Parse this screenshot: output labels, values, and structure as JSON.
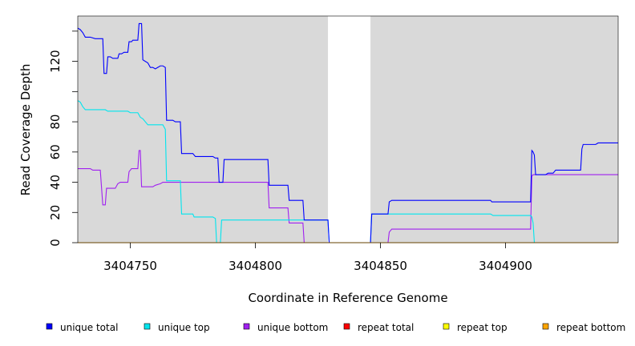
{
  "chart_data": {
    "type": "line",
    "title": "",
    "xlabel": "Coordinate in Reference Genome",
    "ylabel": "Read Coverage Depth",
    "xlim": [
      3404729,
      3404945
    ],
    "ylim": [
      0,
      150
    ],
    "x_ticks": [
      3404750,
      3404800,
      3404850,
      3404900
    ],
    "y_ticks": [
      0,
      20,
      40,
      60,
      80,
      120
    ],
    "y_minor_ticks": [
      100,
      140
    ],
    "background": "#d9d9d9",
    "gap_region": {
      "from": 3404829,
      "to": 3404846,
      "color": "#ffffff"
    },
    "grid": false,
    "legend_position": "bottom",
    "series": [
      {
        "name": "unique total",
        "color": "#0000ff",
        "points": [
          [
            3404729,
            142
          ],
          [
            3404730,
            141
          ],
          [
            3404731,
            139
          ],
          [
            3404732,
            136
          ],
          [
            3404734,
            136
          ],
          [
            3404736,
            135
          ],
          [
            3404739,
            135
          ],
          [
            3404739.5,
            112
          ],
          [
            3404740.5,
            112
          ],
          [
            3404741,
            123
          ],
          [
            3404742,
            123
          ],
          [
            3404743,
            122
          ],
          [
            3404745,
            122
          ],
          [
            3404745.5,
            125
          ],
          [
            3404746.5,
            125
          ],
          [
            3404747.5,
            126
          ],
          [
            3404749,
            126
          ],
          [
            3404749.5,
            133
          ],
          [
            3404750.5,
            133
          ],
          [
            3404751,
            134
          ],
          [
            3404753,
            134
          ],
          [
            3404753.5,
            145
          ],
          [
            3404754.5,
            145
          ],
          [
            3404755,
            121
          ],
          [
            3404756,
            120
          ],
          [
            3404757,
            119
          ],
          [
            3404758,
            116
          ],
          [
            3404759,
            116
          ],
          [
            3404760,
            115
          ],
          [
            3404761,
            116
          ],
          [
            3404762,
            117
          ],
          [
            3404763,
            117
          ],
          [
            3404764,
            116
          ],
          [
            3404764.5,
            81
          ],
          [
            3404767,
            81
          ],
          [
            3404768,
            80
          ],
          [
            3404770,
            80
          ],
          [
            3404770.5,
            59
          ],
          [
            3404775,
            59
          ],
          [
            3404776,
            57
          ],
          [
            3404783,
            57
          ],
          [
            3404784,
            56
          ],
          [
            3404785,
            56
          ],
          [
            3404785.5,
            40
          ],
          [
            3404787,
            40
          ],
          [
            3404787.5,
            55
          ],
          [
            3404805,
            55
          ],
          [
            3404805.5,
            38
          ],
          [
            3404813,
            38
          ],
          [
            3404813.5,
            28
          ],
          [
            3404819,
            28
          ],
          [
            3404819.5,
            15
          ],
          [
            3404829,
            15
          ],
          [
            3404829.5,
            0
          ],
          [
            3404846,
            0
          ],
          [
            3404846.5,
            19
          ],
          [
            3404853,
            19
          ],
          [
            3404853.5,
            27
          ],
          [
            3404854.5,
            28
          ],
          [
            3404894,
            28
          ],
          [
            3404894.5,
            27
          ],
          [
            3404910,
            27
          ],
          [
            3404910.5,
            61
          ],
          [
            3404911,
            60
          ],
          [
            3404911.5,
            58
          ],
          [
            3404912,
            45
          ],
          [
            3404916,
            45
          ],
          [
            3404917,
            46
          ],
          [
            3404919,
            46
          ],
          [
            3404920,
            48
          ],
          [
            3404930,
            48
          ],
          [
            3404930.5,
            62
          ],
          [
            3404931,
            65
          ],
          [
            3404936,
            65
          ],
          [
            3404937,
            66
          ],
          [
            3404945,
            66
          ]
        ]
      },
      {
        "name": "unique top",
        "color": "#00e5ee",
        "points": [
          [
            3404729,
            94
          ],
          [
            3404730,
            93
          ],
          [
            3404731,
            90
          ],
          [
            3404732,
            88
          ],
          [
            3404740,
            88
          ],
          [
            3404741,
            87
          ],
          [
            3404749,
            87
          ],
          [
            3404750,
            86
          ],
          [
            3404753,
            86
          ],
          [
            3404754,
            83
          ],
          [
            3404755,
            82
          ],
          [
            3404756,
            80
          ],
          [
            3404757,
            78
          ],
          [
            3404763,
            78
          ],
          [
            3404764,
            75
          ],
          [
            3404764.5,
            41
          ],
          [
            3404770,
            41
          ],
          [
            3404770.5,
            19
          ],
          [
            3404775,
            19
          ],
          [
            3404775.5,
            17
          ],
          [
            3404783,
            17
          ],
          [
            3404784,
            16
          ],
          [
            3404784.5,
            0
          ],
          [
            3404786,
            0
          ],
          [
            3404786.5,
            15
          ],
          [
            3404829,
            15
          ],
          [
            3404829.5,
            0
          ],
          [
            3404846,
            0
          ],
          [
            3404846.5,
            19
          ],
          [
            3404894,
            19
          ],
          [
            3404895,
            18
          ],
          [
            3404910,
            18
          ],
          [
            3404910.5,
            17
          ],
          [
            3404911,
            13
          ],
          [
            3404911.5,
            0
          ],
          [
            3404945,
            0
          ]
        ]
      },
      {
        "name": "unique bottom",
        "color": "#a020f0",
        "points": [
          [
            3404729,
            49
          ],
          [
            3404734,
            49
          ],
          [
            3404735,
            48
          ],
          [
            3404738,
            48
          ],
          [
            3404739,
            25
          ],
          [
            3404740,
            25
          ],
          [
            3404740.5,
            36
          ],
          [
            3404744,
            36
          ],
          [
            3404745,
            39
          ],
          [
            3404746,
            40
          ],
          [
            3404749,
            40
          ],
          [
            3404749.5,
            47
          ],
          [
            3404750.5,
            49
          ],
          [
            3404753,
            49
          ],
          [
            3404753.5,
            61
          ],
          [
            3404754,
            61
          ],
          [
            3404754.5,
            37
          ],
          [
            3404759,
            37
          ],
          [
            3404760,
            38
          ],
          [
            3404762,
            39
          ],
          [
            3404763,
            40
          ],
          [
            3404805,
            40
          ],
          [
            3404805.5,
            23
          ],
          [
            3404813,
            23
          ],
          [
            3404813.5,
            13
          ],
          [
            3404819,
            13
          ],
          [
            3404819.5,
            0
          ],
          [
            3404853,
            0
          ],
          [
            3404853.5,
            7
          ],
          [
            3404854.5,
            9
          ],
          [
            3404910,
            9
          ],
          [
            3404910.5,
            44
          ],
          [
            3404911,
            45
          ],
          [
            3404945,
            45
          ]
        ]
      },
      {
        "name": "repeat total",
        "color": "#ff0000",
        "points": [
          [
            3404729,
            0
          ],
          [
            3404945,
            0
          ]
        ]
      },
      {
        "name": "repeat top",
        "color": "#ffff00",
        "points": [
          [
            3404729,
            0
          ],
          [
            3404945,
            0
          ]
        ]
      },
      {
        "name": "repeat bottom",
        "color": "#ffa500",
        "points": [
          [
            3404729,
            0
          ],
          [
            3404945,
            0
          ]
        ]
      }
    ]
  }
}
